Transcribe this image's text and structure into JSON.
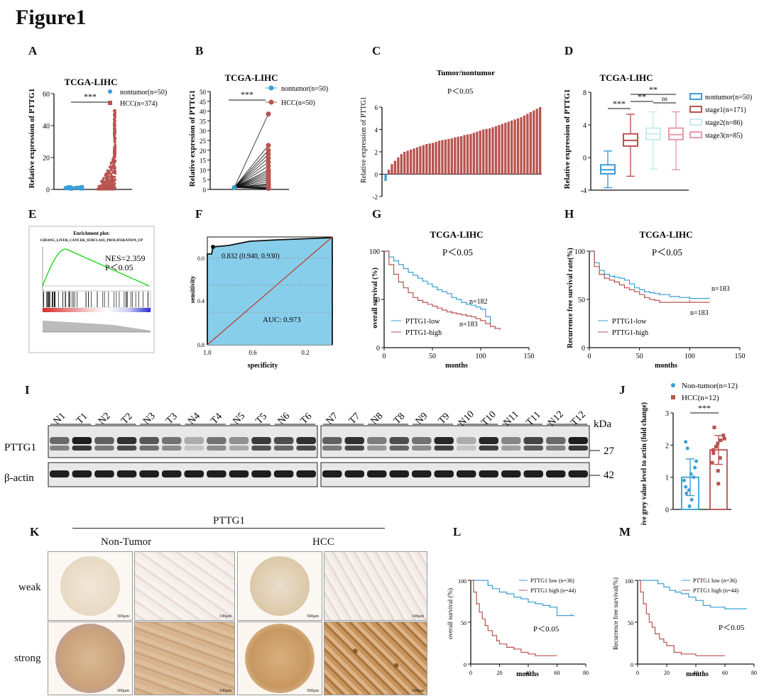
{
  "figure": {
    "title": "Figure1",
    "panel_labels": [
      "A",
      "B",
      "C",
      "D",
      "E",
      "F",
      "G",
      "H",
      "I",
      "J",
      "K",
      "L",
      "M"
    ]
  },
  "colors": {
    "blue": "#3a9fd4",
    "red": "#b85450",
    "green": "#00d000",
    "roc_fill": "#87ceeb",
    "pink": "#e69aa8",
    "lightcyan": "#c7ecef"
  },
  "chart_data": [
    {
      "id": "A",
      "type": "scatter",
      "title": "TCGA-LIHC",
      "ylabel": "Relative expression of PTTG1",
      "ylim": [
        0,
        60
      ],
      "yticks": [
        0,
        20,
        40,
        60
      ],
      "significance": "***",
      "series": [
        {
          "name": "nontumor(n=50)",
          "n": 50,
          "y_min": 0,
          "y_max": 2
        },
        {
          "name": "HCC(n=374)",
          "n": 374,
          "y_min": 0,
          "y_max": 50
        }
      ]
    },
    {
      "id": "B",
      "type": "line",
      "title": "TCGA-LIHC",
      "ylabel": "Relative expresion of PTTG1",
      "ylim": [
        0,
        50
      ],
      "yticks": [
        0,
        5,
        10,
        15,
        20,
        25,
        30,
        35,
        40,
        45,
        50
      ],
      "significance": "***",
      "series": [
        {
          "name": "nontumor(n=50)"
        },
        {
          "name": "HCC(n=50)"
        }
      ],
      "paired_hcc_values": [
        0.5,
        1,
        1.5,
        2,
        2.5,
        3,
        4,
        5,
        6,
        7,
        8,
        9,
        10,
        12,
        14,
        16,
        18,
        20,
        22.5,
        38.5
      ]
    },
    {
      "id": "C",
      "type": "bar",
      "title": "Tumor/nontumor",
      "ylabel": "Relative expression of PTTG1",
      "ylim": [
        -2,
        6
      ],
      "yticks": [
        -2,
        0,
        2,
        4,
        6
      ],
      "annotation": "P＜0.05",
      "values": [
        -0.6,
        0.4,
        0.9,
        1.2,
        1.5,
        1.8,
        2.0,
        2.1,
        2.2,
        2.3,
        2.4,
        2.5,
        2.6,
        2.7,
        2.75,
        2.8,
        2.9,
        3.0,
        3.05,
        3.1,
        3.15,
        3.2,
        3.3,
        3.35,
        3.4,
        3.5,
        3.55,
        3.6,
        3.7,
        3.8,
        3.9,
        4.0,
        4.05,
        4.1,
        4.2,
        4.3,
        4.4,
        4.5,
        4.6,
        4.7,
        4.8,
        4.9,
        5.0,
        5.1,
        5.25,
        5.4,
        5.55,
        5.7,
        5.85,
        6.0
      ]
    },
    {
      "id": "D",
      "type": "box",
      "title": "TCGA-LIHC",
      "ylabel": "Relative expression of PTTG1",
      "ylim": [
        -4,
        8
      ],
      "yticks": [
        -4,
        0,
        4,
        8
      ],
      "comparisons": [
        {
          "label": "***",
          "from": 0,
          "to": 1
        },
        {
          "label": "**",
          "from": 1,
          "to": 2
        },
        {
          "label": "**",
          "from": 1,
          "to": 3
        },
        {
          "label": "ns",
          "from": 2,
          "to": 3
        }
      ],
      "boxes": [
        {
          "name": "nontumor(n=50)",
          "min": -3.7,
          "q1": -2.0,
          "median": -1.5,
          "q3": -0.9,
          "max": 0.8
        },
        {
          "name": "stage1(n=171)",
          "min": -2.3,
          "q1": 1.4,
          "median": 2.1,
          "q3": 2.9,
          "max": 5.3
        },
        {
          "name": "stage2(n=86)",
          "min": -1.4,
          "q1": 2.2,
          "median": 2.9,
          "q3": 3.6,
          "max": 5.6
        },
        {
          "name": "stage3(n=85)",
          "min": -1.5,
          "q1": 2.2,
          "median": 2.8,
          "q3": 3.6,
          "max": 5.6
        }
      ]
    },
    {
      "id": "E",
      "type": "line",
      "title": "Enrichment plot:",
      "subtitle": "CHIANG_LIVER_CANCER_SUBCLASS_PROLIFERATION_UP",
      "annotations": [
        "NES=2.359",
        "P＜0.05"
      ]
    },
    {
      "id": "F",
      "type": "line",
      "xlabel": "specificity",
      "ylabel": "sensitivity",
      "xticks": [
        "1.0",
        "0.6",
        "0.2"
      ],
      "yticks": [
        "0.0",
        "0.4",
        "0.8"
      ],
      "auc_label": "AUC: 0.973",
      "point_label": "0.832 (0.940, 0.930)"
    },
    {
      "id": "G",
      "type": "line",
      "title": "TCGA-LIHC",
      "xlabel": "months",
      "ylabel": "overall survival (%)",
      "xlim": [
        0,
        150
      ],
      "ylim": [
        0,
        100
      ],
      "xticks": [
        0,
        50,
        100,
        150
      ],
      "yticks": [
        0,
        50,
        100
      ],
      "annotation": "P＜0.05",
      "series": [
        {
          "name": "PTTG1-low",
          "n_label": "n=182",
          "x": [
            0,
            5,
            10,
            15,
            20,
            25,
            30,
            35,
            40,
            45,
            50,
            55,
            60,
            65,
            70,
            75,
            80,
            85,
            90,
            95,
            100,
            105,
            110
          ],
          "y": [
            100,
            94,
            90,
            86,
            82,
            78,
            75,
            72,
            69,
            66,
            63,
            60,
            58,
            56,
            52,
            50,
            47,
            45,
            44,
            42,
            40,
            32,
            25
          ]
        },
        {
          "name": "PTTG1-high",
          "n_label": "n=183",
          "x": [
            0,
            5,
            10,
            15,
            20,
            25,
            30,
            35,
            40,
            45,
            50,
            55,
            60,
            65,
            70,
            75,
            80,
            85,
            90,
            95,
            100,
            105,
            110,
            115,
            120
          ],
          "y": [
            100,
            86,
            76,
            68,
            62,
            57,
            52,
            49,
            47,
            45,
            43,
            41,
            39,
            37,
            36,
            35,
            34,
            33,
            32,
            30,
            28,
            25,
            22,
            20,
            18
          ]
        }
      ]
    },
    {
      "id": "H",
      "type": "line",
      "title": "TCGA-LIHC",
      "xlabel": "months",
      "ylabel": "Recurrence free survival rate(%)",
      "xlim": [
        0,
        150
      ],
      "ylim": [
        0,
        100
      ],
      "xticks": [
        0,
        50,
        100,
        150
      ],
      "yticks": [
        0,
        50,
        100
      ],
      "annotation": "P＜0.05",
      "series": [
        {
          "name": "PTTG1-low",
          "n_label": "n=183",
          "x": [
            0,
            5,
            10,
            15,
            20,
            25,
            30,
            35,
            40,
            45,
            50,
            55,
            60,
            65,
            70,
            80,
            90,
            100,
            110,
            120
          ],
          "y": [
            100,
            88,
            80,
            76,
            74,
            73,
            72,
            70,
            66,
            62,
            60,
            58,
            57,
            56,
            55,
            53,
            52,
            51,
            51,
            51
          ]
        },
        {
          "name": "PTTG1-high",
          "n_label": "n=183",
          "x": [
            0,
            5,
            10,
            15,
            20,
            25,
            30,
            35,
            40,
            45,
            50,
            55,
            60,
            65,
            70,
            80,
            90,
            100,
            110,
            120
          ],
          "y": [
            100,
            84,
            76,
            72,
            70,
            68,
            65,
            62,
            60,
            58,
            55,
            52,
            50,
            49,
            47,
            47,
            47,
            47,
            47,
            47
          ]
        }
      ]
    },
    {
      "id": "I",
      "type": "blot",
      "lanes_left": [
        "N1",
        "T1",
        "N2",
        "T2",
        "N3",
        "T3",
        "N4",
        "T4",
        "N5",
        "T5",
        "N6",
        "T6"
      ],
      "lanes_right": [
        "N7",
        "T7",
        "N8",
        "T8",
        "N9",
        "T9",
        "N10",
        "T10",
        "N11",
        "T11",
        "N12",
        "T12"
      ],
      "rows": [
        "PTTG1",
        "β-actin"
      ],
      "kda_label": "kDa",
      "markers": [
        "27",
        "42"
      ],
      "pttg1_intensity_left": [
        0.55,
        0.95,
        0.6,
        0.85,
        0.65,
        0.5,
        0.2,
        0.5,
        0.35,
        0.8,
        0.7,
        0.85
      ],
      "pttg1_intensity_right": [
        0.6,
        0.85,
        0.45,
        0.7,
        0.5,
        0.9,
        0.2,
        0.9,
        0.4,
        0.75,
        0.55,
        0.95
      ]
    },
    {
      "id": "J",
      "type": "bar",
      "ylabel": "Relative grey value level to actin (fold change)",
      "ylim": [
        0,
        3
      ],
      "yticks": [
        0,
        1,
        2,
        3
      ],
      "significance": "***",
      "series": [
        {
          "name": "Non-tumor(n=12)",
          "mean": 1.0,
          "sd": 0.57,
          "points": [
            0.1,
            0.3,
            0.5,
            0.6,
            0.7,
            0.9,
            1.0,
            1.1,
            1.3,
            1.5,
            1.9,
            2.1
          ]
        },
        {
          "name": "HCC(n=12)",
          "mean": 1.85,
          "sd": 0.45,
          "points": [
            0.8,
            1.2,
            1.45,
            1.6,
            1.75,
            1.85,
            1.95,
            2.05,
            2.15,
            2.2,
            2.3,
            2.55
          ]
        }
      ]
    },
    {
      "id": "K",
      "type": "image-grid",
      "header": "PTTG1",
      "columns": [
        "Non-Tumor",
        "HCC"
      ],
      "rows": [
        "weak",
        "strong"
      ],
      "scalebars": [
        "500μm",
        "100μm"
      ]
    },
    {
      "id": "L",
      "type": "line",
      "xlabel": "months",
      "ylabel": "overall survival (%)",
      "xlim": [
        0,
        80
      ],
      "ylim": [
        0,
        100
      ],
      "xticks": [
        0,
        20,
        40,
        60,
        80
      ],
      "yticks": [
        0,
        50,
        100
      ],
      "annotation": "P＜0.05",
      "series": [
        {
          "name": "PTTG1 low (n=36)",
          "x": [
            0,
            10,
            12,
            15,
            20,
            25,
            30,
            35,
            40,
            45,
            50,
            55,
            60,
            65,
            70,
            72
          ],
          "y": [
            100,
            100,
            94,
            90,
            86,
            84,
            80,
            78,
            74,
            72,
            70,
            68,
            58,
            58,
            58,
            58
          ]
        },
        {
          "name": "PTTG1 high (n=44)",
          "x": [
            0,
            2,
            4,
            6,
            8,
            10,
            12,
            15,
            18,
            20,
            25,
            30,
            35,
            40,
            45,
            60
          ],
          "y": [
            100,
            86,
            72,
            62,
            54,
            46,
            40,
            34,
            28,
            24,
            20,
            18,
            14,
            12,
            10,
            10
          ]
        }
      ]
    },
    {
      "id": "M",
      "type": "line",
      "xlabel": "months",
      "ylabel": "Recurrence free survival(%)",
      "xlim": [
        0,
        80
      ],
      "ylim": [
        0,
        100
      ],
      "xticks": [
        0,
        20,
        40,
        60,
        80
      ],
      "yticks": [
        0,
        50,
        100
      ],
      "annotation": "P＜0.05",
      "series": [
        {
          "name": "PTTG1 low (n=36)",
          "x": [
            0,
            10,
            14,
            18,
            22,
            26,
            30,
            35,
            40,
            45,
            50,
            60,
            70,
            75
          ],
          "y": [
            100,
            100,
            96,
            92,
            88,
            86,
            84,
            80,
            76,
            70,
            68,
            66,
            66,
            66
          ]
        },
        {
          "name": "PTTG1 high (n=44)",
          "x": [
            0,
            2,
            4,
            6,
            8,
            10,
            12,
            15,
            18,
            20,
            25,
            30,
            40,
            60
          ],
          "y": [
            100,
            86,
            72,
            60,
            50,
            44,
            36,
            30,
            26,
            22,
            14,
            12,
            10,
            10
          ]
        }
      ]
    }
  ]
}
